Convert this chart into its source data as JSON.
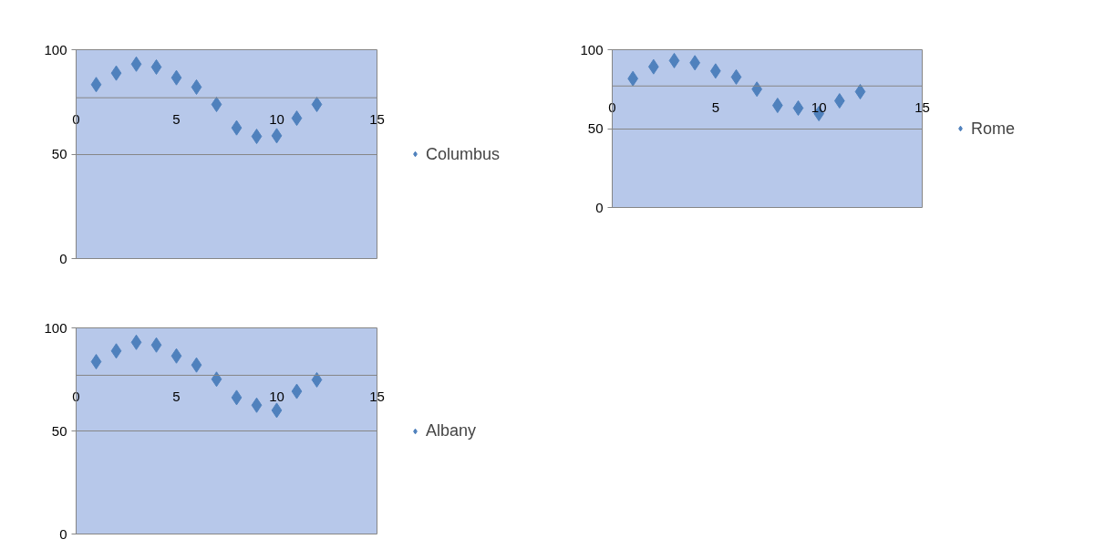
{
  "chart_data": [
    {
      "type": "scatter",
      "x": [
        1,
        2,
        3,
        4,
        5,
        6,
        7,
        8,
        9,
        10,
        11,
        12
      ],
      "marker": "diamond",
      "grid": "y",
      "legend": "right",
      "xlim": [
        0,
        15
      ],
      "xticks": [
        0,
        5,
        10,
        15
      ],
      "ylim": [
        0,
        100
      ],
      "yticks": [
        0,
        50,
        100
      ],
      "ref_lines": [
        {
          "axis": "y",
          "value": 77,
          "label": null
        }
      ],
      "series": [
        {
          "name": "Columbus",
          "color": "#4f81bd",
          "values": [
            83.3,
            88.8,
            93.1,
            91.7,
            86.6,
            82.1,
            73.8,
            62.6,
            58.5,
            58.8,
            67.2,
            73.8
          ]
        }
      ]
    },
    {
      "type": "scatter",
      "x": [
        1,
        2,
        3,
        4,
        5,
        6,
        7,
        8,
        9,
        10,
        11,
        12
      ],
      "marker": "diamond",
      "grid": "y",
      "legend": "right",
      "xlim": [
        0,
        15
      ],
      "xticks": [
        0,
        5,
        10,
        15
      ],
      "ylim": [
        0,
        100
      ],
      "yticks": [
        0,
        50,
        100
      ],
      "ref_lines": [
        {
          "axis": "y",
          "value": 77,
          "label": null
        }
      ],
      "series": [
        {
          "name": "Rome",
          "color": "#4f81bd",
          "values": [
            81.7,
            89.2,
            93.1,
            91.7,
            86.5,
            82.7,
            75.0,
            64.7,
            63.0,
            59.5,
            67.6,
            73.4
          ]
        }
      ]
    },
    {
      "type": "scatter",
      "x": [
        1,
        2,
        3,
        4,
        5,
        6,
        7,
        8,
        9,
        10,
        11,
        12
      ],
      "marker": "diamond",
      "grid": "y",
      "legend": "right",
      "xlim": [
        0,
        15
      ],
      "xticks": [
        0,
        5,
        10,
        15
      ],
      "ylim": [
        0,
        100
      ],
      "yticks": [
        0,
        50,
        100
      ],
      "ref_lines": [
        {
          "axis": "y",
          "value": 77,
          "label": null
        }
      ],
      "series": [
        {
          "name": "Albany",
          "color": "#4f81bd",
          "values": [
            83.6,
            88.8,
            93.0,
            91.7,
            86.4,
            82.0,
            75.1,
            66.2,
            62.5,
            60.0,
            69.2,
            74.8
          ]
        }
      ]
    }
  ]
}
